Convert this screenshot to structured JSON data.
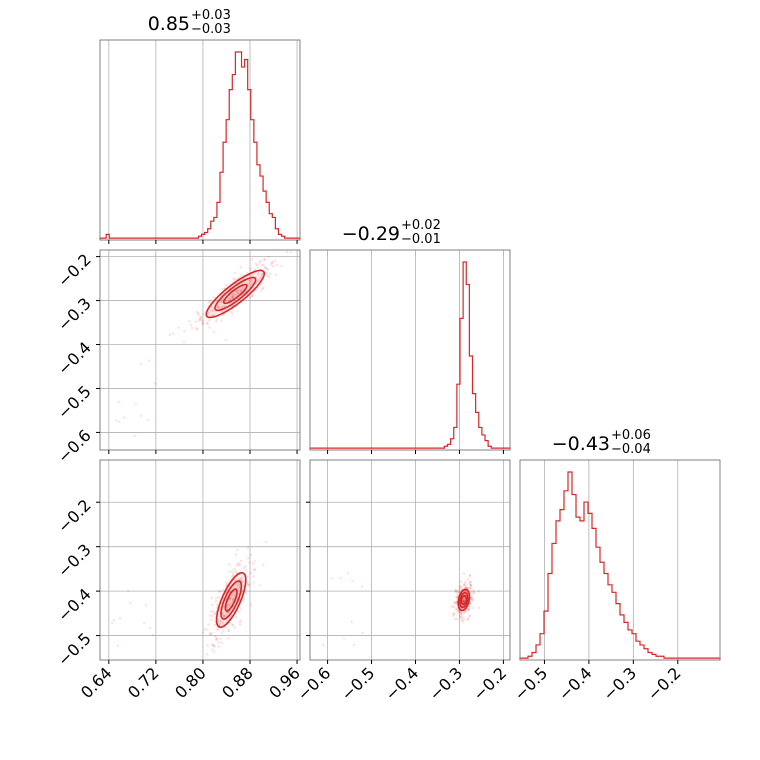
{
  "chart_data": {
    "type": "corner",
    "color": "#d62728",
    "titles": [
      {
        "median": "0.85",
        "plus": "+0.03",
        "minus": "−0.03"
      },
      {
        "median": "−0.29",
        "plus": "+0.02",
        "minus": "−0.01"
      },
      {
        "median": "−0.43",
        "plus": "+0.06",
        "minus": "−0.04"
      }
    ],
    "params": [
      {
        "range": [
          0.625,
          0.965
        ],
        "ticks": [
          0.64,
          0.72,
          0.8,
          0.88,
          0.96
        ],
        "tick_labels": [
          "0.64",
          "0.72",
          "0.80",
          "0.88",
          "0.96"
        ]
      },
      {
        "range": [
          -0.64,
          -0.185
        ],
        "ticks": [
          -0.6,
          -0.5,
          -0.4,
          -0.3,
          -0.2
        ],
        "tick_labels": [
          "−0.6",
          "−0.5",
          "−0.4",
          "−0.3",
          "−0.2"
        ]
      },
      {
        "range": [
          -0.555,
          -0.105
        ],
        "ticks": [
          -0.5,
          -0.4,
          -0.3,
          -0.2
        ],
        "tick_labels": [
          "−0.5",
          "−0.4",
          "−0.3",
          "−0.2"
        ]
      }
    ],
    "row_ticks": {
      "1": {
        "ticks": [
          -0.2,
          -0.3,
          -0.4,
          -0.5,
          -0.6
        ],
        "tick_labels": [
          "−0.2",
          "−0.3",
          "−0.4",
          "−0.5",
          "−0.6"
        ]
      },
      "2": {
        "ticks": [
          -0.2,
          -0.3,
          -0.4,
          -0.5
        ],
        "tick_labels": [
          "−0.2",
          "−0.3",
          "−0.4",
          "−0.5"
        ]
      }
    },
    "hist": [
      {
        "bin_edges_range": [
          0.625,
          0.965
        ],
        "counts": [
          1,
          1,
          3,
          1,
          1,
          1,
          1,
          1,
          1,
          1,
          1,
          1,
          1,
          1,
          1,
          1,
          1,
          1,
          1,
          1,
          1,
          1,
          1,
          1,
          1,
          1,
          1,
          1,
          1,
          1,
          1,
          1,
          2,
          3,
          4,
          6,
          10,
          12,
          20,
          36,
          52,
          64,
          80,
          88,
          100,
          100,
          92,
          96,
          80,
          64,
          52,
          40,
          34,
          26,
          20,
          14,
          12,
          6,
          3,
          2,
          1,
          1,
          1,
          1,
          1
        ]
      },
      {
        "bin_edges_range": [
          -0.64,
          -0.185
        ],
        "counts": [
          1,
          1,
          1,
          1,
          1,
          1,
          1,
          1,
          1,
          1,
          1,
          1,
          1,
          1,
          1,
          1,
          1,
          1,
          1,
          1,
          1,
          1,
          1,
          1,
          1,
          1,
          1,
          1,
          1,
          1,
          1,
          1,
          1,
          1,
          1,
          1,
          1,
          1,
          1,
          1,
          1,
          1,
          1,
          2,
          3,
          6,
          12,
          35,
          70,
          100,
          88,
          50,
          30,
          20,
          12,
          8,
          5,
          2,
          1,
          1,
          1,
          1,
          1,
          1
        ]
      },
      {
        "bin_edges_range": [
          -0.555,
          -0.105
        ],
        "counts": [
          1,
          1,
          2,
          4,
          8,
          14,
          26,
          46,
          62,
          74,
          80,
          90,
          100,
          88,
          76,
          74,
          84,
          78,
          70,
          60,
          52,
          46,
          40,
          36,
          30,
          24,
          20,
          16,
          14,
          10,
          8,
          6,
          4,
          3,
          2,
          2,
          1,
          1,
          1,
          1,
          1,
          1,
          1,
          1,
          1,
          1,
          1,
          1,
          1,
          1
        ]
      }
    ],
    "pairs": [
      {
        "row": 1,
        "col": 0,
        "center": [
          0.855,
          -0.285
        ],
        "slope": 1.05,
        "sigma_along": 0.035,
        "sigma_perp": 0.009
      },
      {
        "row": 2,
        "col": 0,
        "center": [
          0.848,
          -0.42
        ],
        "slope": 3.0,
        "sigma_along": 0.032,
        "sigma_perp": 0.008
      },
      {
        "row": 2,
        "col": 1,
        "center": [
          -0.29,
          -0.42
        ],
        "slope": 4.5,
        "sigma_along": 0.012,
        "sigma_perp": 0.006
      }
    ],
    "grid": true
  }
}
